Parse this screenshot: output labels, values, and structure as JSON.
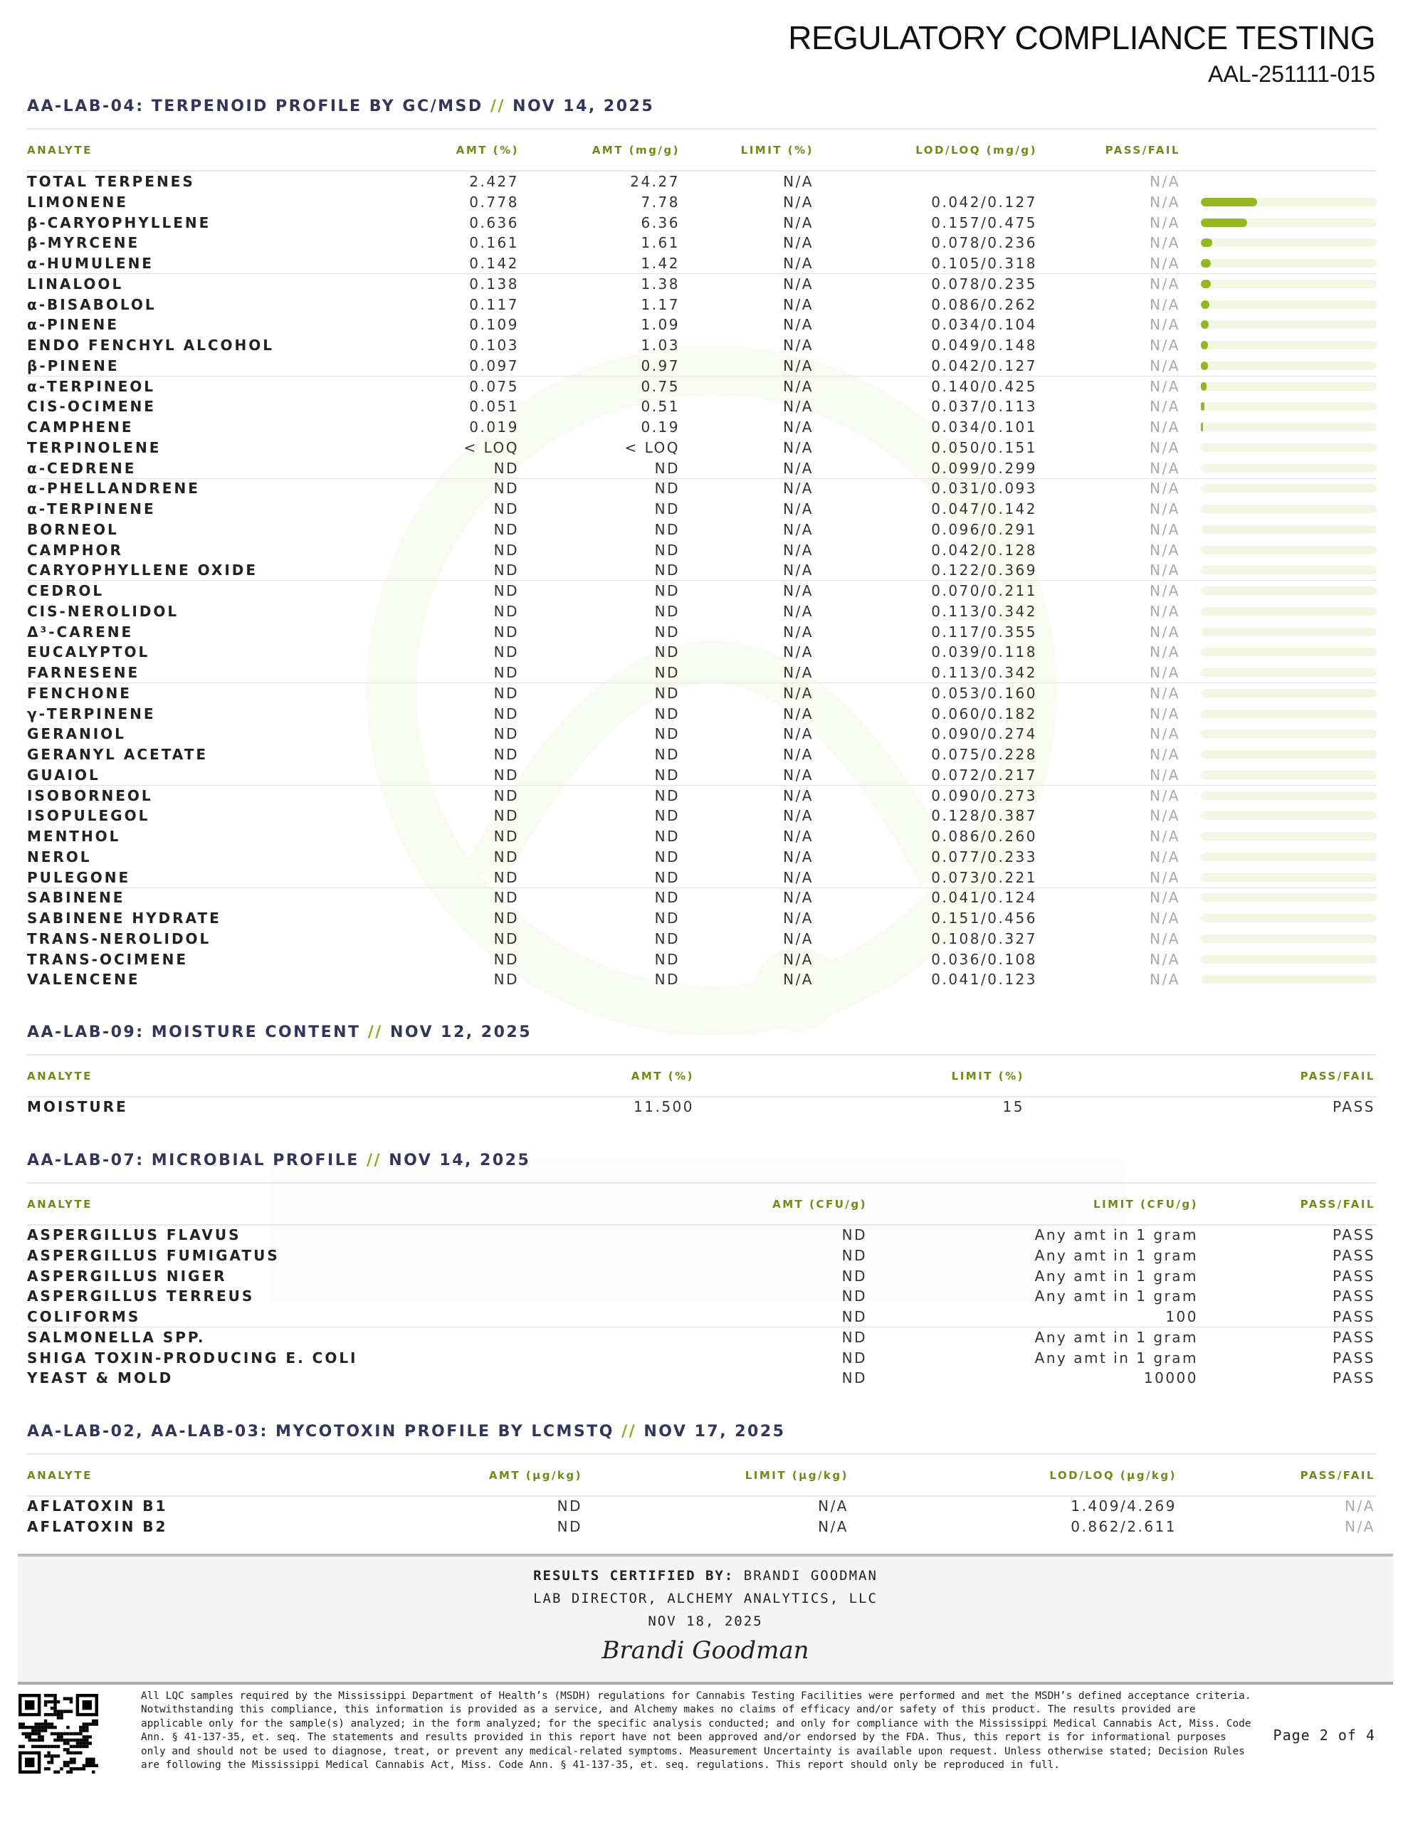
{
  "header": {
    "title": "REGULATORY COMPLIANCE TESTING",
    "report_id": "AAL-251111-015"
  },
  "colors": {
    "accent": "#95b822",
    "heading": "#35355a",
    "column_header": "#6f8a16"
  },
  "terpenes": {
    "title": "AA-LAB-04: TERPENOID PROFILE BY GC/MSD",
    "sep": "//",
    "date": "NOV 14, 2025",
    "columns": [
      "ANALYTE",
      "AMT (%)",
      "AMT (mg/g)",
      "LIMIT (%)",
      "LOD/LOQ (mg/g)",
      "PASS/FAIL"
    ],
    "total_amt_pct": 2.427,
    "rows": [
      [
        "TOTAL TERPENES",
        "2.427",
        "24.27",
        "N/A",
        "",
        "N/A"
      ],
      [
        "LIMONENE",
        "0.778",
        "7.78",
        "N/A",
        "0.042/0.127",
        "N/A"
      ],
      [
        "β-CARYOPHYLLENE",
        "0.636",
        "6.36",
        "N/A",
        "0.157/0.475",
        "N/A"
      ],
      [
        "β-MYRCENE",
        "0.161",
        "1.61",
        "N/A",
        "0.078/0.236",
        "N/A"
      ],
      [
        "α-HUMULENE",
        "0.142",
        "1.42",
        "N/A",
        "0.105/0.318",
        "N/A"
      ],
      [
        "LINALOOL",
        "0.138",
        "1.38",
        "N/A",
        "0.078/0.235",
        "N/A"
      ],
      [
        "α-BISABOLOL",
        "0.117",
        "1.17",
        "N/A",
        "0.086/0.262",
        "N/A"
      ],
      [
        "α-PINENE",
        "0.109",
        "1.09",
        "N/A",
        "0.034/0.104",
        "N/A"
      ],
      [
        "ENDO FENCHYL ALCOHOL",
        "0.103",
        "1.03",
        "N/A",
        "0.049/0.148",
        "N/A"
      ],
      [
        "β-PINENE",
        "0.097",
        "0.97",
        "N/A",
        "0.042/0.127",
        "N/A"
      ],
      [
        "α-TERPINEOL",
        "0.075",
        "0.75",
        "N/A",
        "0.140/0.425",
        "N/A"
      ],
      [
        "CIS-OCIMENE",
        "0.051",
        "0.51",
        "N/A",
        "0.037/0.113",
        "N/A"
      ],
      [
        "CAMPHENE",
        "0.019",
        "0.19",
        "N/A",
        "0.034/0.101",
        "N/A"
      ],
      [
        "TERPINOLENE",
        "< LOQ",
        "< LOQ",
        "N/A",
        "0.050/0.151",
        "N/A"
      ],
      [
        "α-CEDRENE",
        "ND",
        "ND",
        "N/A",
        "0.099/0.299",
        "N/A"
      ],
      [
        "α-PHELLANDRENE",
        "ND",
        "ND",
        "N/A",
        "0.031/0.093",
        "N/A"
      ],
      [
        "α-TERPINENE",
        "ND",
        "ND",
        "N/A",
        "0.047/0.142",
        "N/A"
      ],
      [
        "BORNEOL",
        "ND",
        "ND",
        "N/A",
        "0.096/0.291",
        "N/A"
      ],
      [
        "CAMPHOR",
        "ND",
        "ND",
        "N/A",
        "0.042/0.128",
        "N/A"
      ],
      [
        "CARYOPHYLLENE OXIDE",
        "ND",
        "ND",
        "N/A",
        "0.122/0.369",
        "N/A"
      ],
      [
        "CEDROL",
        "ND",
        "ND",
        "N/A",
        "0.070/0.211",
        "N/A"
      ],
      [
        "CIS-NEROLIDOL",
        "ND",
        "ND",
        "N/A",
        "0.113/0.342",
        "N/A"
      ],
      [
        "Δ³-CARENE",
        "ND",
        "ND",
        "N/A",
        "0.117/0.355",
        "N/A"
      ],
      [
        "EUCALYPTOL",
        "ND",
        "ND",
        "N/A",
        "0.039/0.118",
        "N/A"
      ],
      [
        "FARNESENE",
        "ND",
        "ND",
        "N/A",
        "0.113/0.342",
        "N/A"
      ],
      [
        "FENCHONE",
        "ND",
        "ND",
        "N/A",
        "0.053/0.160",
        "N/A"
      ],
      [
        "γ-TERPINENE",
        "ND",
        "ND",
        "N/A",
        "0.060/0.182",
        "N/A"
      ],
      [
        "GERANIOL",
        "ND",
        "ND",
        "N/A",
        "0.090/0.274",
        "N/A"
      ],
      [
        "GERANYL ACETATE",
        "ND",
        "ND",
        "N/A",
        "0.075/0.228",
        "N/A"
      ],
      [
        "GUAIOL",
        "ND",
        "ND",
        "N/A",
        "0.072/0.217",
        "N/A"
      ],
      [
        "ISOBORNEOL",
        "ND",
        "ND",
        "N/A",
        "0.090/0.273",
        "N/A"
      ],
      [
        "ISOPULEGOL",
        "ND",
        "ND",
        "N/A",
        "0.128/0.387",
        "N/A"
      ],
      [
        "MENTHOL",
        "ND",
        "ND",
        "N/A",
        "0.086/0.260",
        "N/A"
      ],
      [
        "NEROL",
        "ND",
        "ND",
        "N/A",
        "0.077/0.233",
        "N/A"
      ],
      [
        "PULEGONE",
        "ND",
        "ND",
        "N/A",
        "0.073/0.221",
        "N/A"
      ],
      [
        "SABINENE",
        "ND",
        "ND",
        "N/A",
        "0.041/0.124",
        "N/A"
      ],
      [
        "SABINENE HYDRATE",
        "ND",
        "ND",
        "N/A",
        "0.151/0.456",
        "N/A"
      ],
      [
        "TRANS-NEROLIDOL",
        "ND",
        "ND",
        "N/A",
        "0.108/0.327",
        "N/A"
      ],
      [
        "TRANS-OCIMENE",
        "ND",
        "ND",
        "N/A",
        "0.036/0.108",
        "N/A"
      ],
      [
        "VALENCENE",
        "ND",
        "ND",
        "N/A",
        "0.041/0.123",
        "N/A"
      ]
    ]
  },
  "moisture": {
    "title": "AA-LAB-09: MOISTURE CONTENT",
    "sep": "//",
    "date": "NOV 12, 2025",
    "columns": [
      "ANALYTE",
      "AMT (%)",
      "LIMIT (%)",
      "PASS/FAIL"
    ],
    "rows": [
      [
        "MOISTURE",
        "11.500",
        "15",
        "PASS"
      ]
    ]
  },
  "microbial": {
    "title": "AA-LAB-07: MICROBIAL PROFILE",
    "sep": "//",
    "date": "NOV 14, 2025",
    "columns": [
      "ANALYTE",
      "AMT (CFU/g)",
      "LIMIT (CFU/g)",
      "PASS/FAIL"
    ],
    "rows": [
      [
        "ASPERGILLUS FLAVUS",
        "ND",
        "Any amt in 1 gram",
        "PASS"
      ],
      [
        "ASPERGILLUS FUMIGATUS",
        "ND",
        "Any amt in 1 gram",
        "PASS"
      ],
      [
        "ASPERGILLUS NIGER",
        "ND",
        "Any amt in 1 gram",
        "PASS"
      ],
      [
        "ASPERGILLUS TERREUS",
        "ND",
        "Any amt in 1 gram",
        "PASS"
      ],
      [
        "COLIFORMS",
        "ND",
        "100",
        "PASS"
      ],
      [
        "SALMONELLA SPP.",
        "ND",
        "Any amt in 1 gram",
        "PASS"
      ],
      [
        "SHIGA TOXIN-PRODUCING E. COLI",
        "ND",
        "Any amt in 1 gram",
        "PASS"
      ],
      [
        "YEAST & MOLD",
        "ND",
        "10000",
        "PASS"
      ]
    ]
  },
  "mycotoxin": {
    "title": "AA-LAB-02, AA-LAB-03: MYCOTOXIN PROFILE BY LCMSTQ",
    "sep": "//",
    "date": "NOV 17, 2025",
    "columns": [
      "ANALYTE",
      "AMT (μg/kg)",
      "LIMIT (μg/kg)",
      "LOD/LOQ (μg/kg)",
      "PASS/FAIL"
    ],
    "rows": [
      [
        "AFLATOXIN B1",
        "ND",
        "N/A",
        "1.409/4.269",
        "N/A"
      ],
      [
        "AFLATOXIN B2",
        "ND",
        "N/A",
        "0.862/2.611",
        "N/A"
      ]
    ]
  },
  "certification": {
    "label": "RESULTS CERTIFIED BY:",
    "name": "BRANDI GOODMAN",
    "role": "LAB DIRECTOR, ALCHEMY ANALYTICS, LLC",
    "date": "NOV 18, 2025",
    "signature": "Brandi Goodman"
  },
  "footer": {
    "disclaimer": "All LQC samples required by the Mississippi Department of Health’s (MSDH) regulations for Cannabis Testing Facilities were performed and met the MSDH’s defined acceptance criteria. Notwithstanding this compliance, this information is provided as a service, and Alchemy makes no claims of efficacy and/or safety of this product. The results provided are applicable only for the sample(s) analyzed; in the form analyzed; for the specific analysis conducted; and only for compliance with the Mississippi Medical Cannabis Act, Miss. Code Ann. § 41-137-35, et. seq. The statements and results provided in this report have not been approved and/or endorsed by the FDA. Thus, this report is for informational purposes only and should not be used to diagnose, treat, or prevent any medical-related symptoms. Measurement Uncertainty is available upon request. Unless otherwise stated; Decision Rules are following the Mississippi Medical Cannabis Act, Miss. Code Ann. § 41-137-35, et. seq. regulations. This report should only be reproduced in full.",
    "page": "Page 2 of 4"
  }
}
